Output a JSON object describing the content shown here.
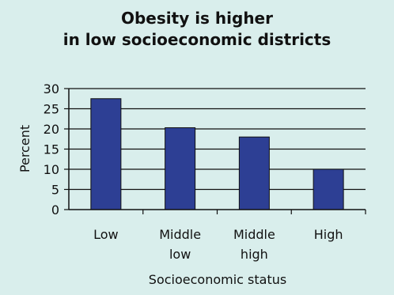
{
  "chart_data": {
    "type": "bar",
    "title_lines": [
      "Obesity is higher",
      "in low socioeconomic districts"
    ],
    "xlabel": "Socioeconomic status",
    "ylabel": "Percent",
    "categories": [
      [
        "Low"
      ],
      [
        "Middle",
        "low"
      ],
      [
        "Middle",
        "high"
      ],
      [
        "High"
      ]
    ],
    "values": [
      27.5,
      20.3,
      18.0,
      10.0
    ],
    "ylim": [
      0,
      30
    ],
    "yticks": [
      0,
      5,
      10,
      15,
      20,
      25,
      30
    ],
    "grid": true,
    "legend": "none",
    "bar_color": "#2d3f94",
    "grid_color": "#111111",
    "background_color": "#d9eeec"
  }
}
